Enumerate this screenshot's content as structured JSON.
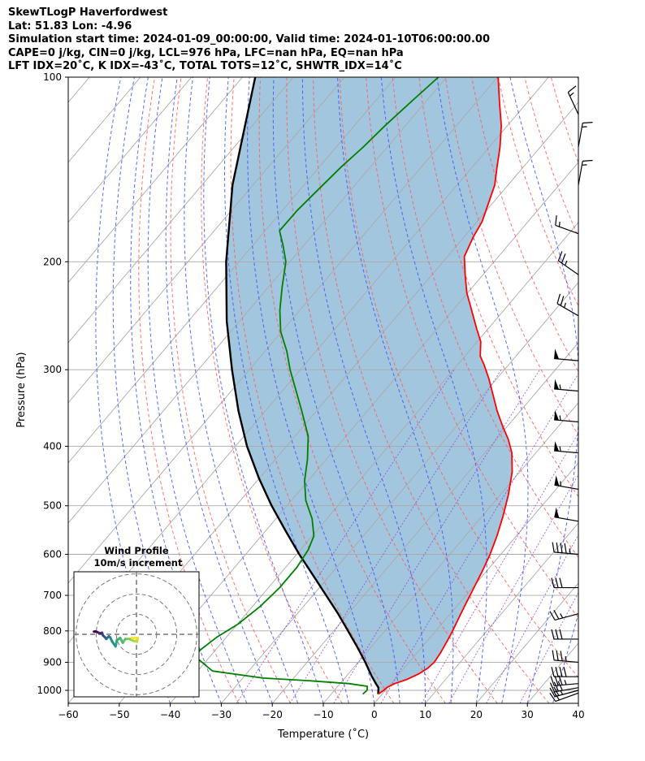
{
  "header": {
    "line1": "SkewTLogP Haverfordwest",
    "line2": "Lat: 51.83   Lon: -4.96",
    "line3": "Simulation start time: 2024-01-09_00:00:00, Valid time: 2024-01-10T06:00:00.00",
    "line4": "CAPE=0 j/kg, CIN=0 j/kg, LCL=976 hPa, LFC=nan hPa, EQ=nan hPa",
    "line5": "LFT IDX=20˚C, K IDX=-43˚C, TOTAL TOTS=12˚C, SHWTR_IDX=14˚C"
  },
  "chart_data": {
    "type": "line",
    "title": "SkewTLogP Haverfordwest",
    "xlabel": "Temperature (˚C)",
    "ylabel": "Pressure (hPa)",
    "xlim": [
      -60,
      40
    ],
    "ylim": [
      1050,
      100
    ],
    "yscale": "log",
    "skew_per_decade_C": 102,
    "x_ticks": [
      -60,
      -50,
      -40,
      -30,
      -20,
      -10,
      0,
      10,
      20,
      30,
      40
    ],
    "y_ticks": [
      100,
      200,
      300,
      400,
      500,
      600,
      700,
      800,
      900,
      1000
    ],
    "grid": true,
    "colors": {
      "temperature": "#ff0000",
      "dewpoint": "#008000",
      "parcel": "#000000",
      "fill": "#a3c6df",
      "dry_adiabat": "#ff5a5a",
      "moist_adiabat": "#3c4fff",
      "mixing_ratio": "#8a3fd6",
      "isotherm": "#a9a9a9"
    },
    "series": [
      {
        "name": "Temperature",
        "points": [
          [
            1014,
            -0.8
          ],
          [
            1000,
            -0.3
          ],
          [
            990,
            -0.2
          ],
          [
            975,
            0.7
          ],
          [
            960,
            2.4
          ],
          [
            940,
            3.8
          ],
          [
            920,
            4.6
          ],
          [
            900,
            4.9
          ],
          [
            870,
            4.6
          ],
          [
            830,
            3.9
          ],
          [
            800,
            3.3
          ],
          [
            760,
            2.3
          ],
          [
            720,
            1.3
          ],
          [
            680,
            0.3
          ],
          [
            640,
            -0.8
          ],
          [
            600,
            -2.1
          ],
          [
            560,
            -3.8
          ],
          [
            520,
            -5.9
          ],
          [
            480,
            -8.4
          ],
          [
            440,
            -11.5
          ],
          [
            410,
            -14.7
          ],
          [
            390,
            -17.6
          ],
          [
            370,
            -21.1
          ],
          [
            350,
            -24.6
          ],
          [
            330,
            -28.0
          ],
          [
            310,
            -31.6
          ],
          [
            295,
            -34.7
          ],
          [
            285,
            -37.0
          ],
          [
            270,
            -39.3
          ],
          [
            257,
            -42.3
          ],
          [
            240,
            -46.3
          ],
          [
            225,
            -50.1
          ],
          [
            210,
            -53.5
          ],
          [
            196,
            -56.7
          ],
          [
            182,
            -58.2
          ],
          [
            172,
            -59.0
          ],
          [
            160,
            -60.9
          ],
          [
            150,
            -62.6
          ],
          [
            140,
            -65.2
          ],
          [
            130,
            -67.9
          ],
          [
            120,
            -71.2
          ],
          [
            110,
            -75.4
          ],
          [
            100,
            -79.9
          ]
        ]
      },
      {
        "name": "Dewpoint",
        "points": [
          [
            1014,
            -3.8
          ],
          [
            1000,
            -3.6
          ],
          [
            985,
            -4.2
          ],
          [
            975,
            -8.3
          ],
          [
            965,
            -16.2
          ],
          [
            955,
            -26.0
          ],
          [
            930,
            -37.1
          ],
          [
            880,
            -43.0
          ],
          [
            860,
            -43.0
          ],
          [
            820,
            -41.9
          ],
          [
            780,
            -39.9
          ],
          [
            730,
            -38.5
          ],
          [
            680,
            -37.8
          ],
          [
            630,
            -37.8
          ],
          [
            590,
            -38.5
          ],
          [
            560,
            -39.7
          ],
          [
            525,
            -42.9
          ],
          [
            490,
            -47.2
          ],
          [
            455,
            -50.7
          ],
          [
            420,
            -53.7
          ],
          [
            385,
            -57.4
          ],
          [
            350,
            -62.9
          ],
          [
            320,
            -68.2
          ],
          [
            300,
            -72.0
          ],
          [
            280,
            -75.7
          ],
          [
            260,
            -80.2
          ],
          [
            240,
            -83.9
          ],
          [
            220,
            -87.3
          ],
          [
            200,
            -90.8
          ],
          [
            188,
            -94.1
          ],
          [
            178,
            -97.2
          ],
          [
            165,
            -97.1
          ],
          [
            155,
            -96.6
          ],
          [
            140,
            -95.7
          ],
          [
            130,
            -94.7
          ],
          [
            120,
            -94.0
          ],
          [
            110,
            -92.9
          ],
          [
            100,
            -91.6
          ]
        ]
      },
      {
        "name": "Parcel",
        "points": [
          [
            1014,
            -0.8
          ],
          [
            990,
            -1.8
          ],
          [
            976,
            -2.9
          ],
          [
            950,
            -4.9
          ],
          [
            900,
            -8.6
          ],
          [
            850,
            -12.7
          ],
          [
            800,
            -17.2
          ],
          [
            750,
            -22.0
          ],
          [
            700,
            -27.4
          ],
          [
            650,
            -33.2
          ],
          [
            600,
            -39.5
          ],
          [
            550,
            -46.0
          ],
          [
            500,
            -53.0
          ],
          [
            450,
            -60.2
          ],
          [
            400,
            -67.7
          ],
          [
            350,
            -75.3
          ],
          [
            300,
            -83.4
          ],
          [
            250,
            -92.5
          ],
          [
            200,
            -102.5
          ],
          [
            150,
            -114.0
          ],
          [
            100,
            -127.5
          ]
        ]
      }
    ],
    "wind_barbs": [
      {
        "p": 1010,
        "dir": 250,
        "spd": 20
      },
      {
        "p": 1000,
        "dir": 255,
        "spd": 25
      },
      {
        "p": 990,
        "dir": 260,
        "spd": 30
      },
      {
        "p": 975,
        "dir": 265,
        "spd": 35
      },
      {
        "p": 950,
        "dir": 270,
        "spd": 40
      },
      {
        "p": 900,
        "dir": 275,
        "spd": 35
      },
      {
        "p": 825,
        "dir": 270,
        "spd": 30
      },
      {
        "p": 750,
        "dir": 255,
        "spd": 25
      },
      {
        "p": 680,
        "dir": 270,
        "spd": 30
      },
      {
        "p": 600,
        "dir": 275,
        "spd": 45
      },
      {
        "p": 530,
        "dir": 280,
        "spd": 50
      },
      {
        "p": 470,
        "dir": 280,
        "spd": 55
      },
      {
        "p": 410,
        "dir": 275,
        "spd": 55
      },
      {
        "p": 365,
        "dir": 275,
        "spd": 55
      },
      {
        "p": 325,
        "dir": 275,
        "spd": 55
      },
      {
        "p": 290,
        "dir": 275,
        "spd": 50
      },
      {
        "p": 245,
        "dir": 300,
        "spd": 25
      },
      {
        "p": 210,
        "dir": 305,
        "spd": 25
      },
      {
        "p": 180,
        "dir": 290,
        "spd": 15
      },
      {
        "p": 150,
        "dir": 10,
        "spd": 15
      },
      {
        "p": 130,
        "dir": 10,
        "spd": 15
      },
      {
        "p": 115,
        "dir": 335,
        "spd": 15
      }
    ],
    "wind_profile": {
      "title": "Wind Profile",
      "subtitle": "10m/s increment",
      "rings_ms": [
        10,
        20,
        30
      ],
      "hodograph_uv": [
        [
          -2.5,
          -1.8
        ],
        [
          0.6,
          -1.9
        ],
        [
          0.3,
          -3.7
        ],
        [
          -1.7,
          -3.2
        ],
        [
          -3.5,
          -2.3
        ],
        [
          -5.5,
          -2.3
        ],
        [
          -6.8,
          -4.2
        ],
        [
          -8.1,
          -1.8
        ],
        [
          -9.7,
          -2.9
        ],
        [
          -10.4,
          -6.0
        ],
        [
          -12.0,
          -3.7
        ],
        [
          -13.1,
          -1.5
        ],
        [
          -13.7,
          -1.0
        ],
        [
          -15.0,
          -2.3
        ],
        [
          -15.7,
          -1.4
        ],
        [
          -16.6,
          -0.6
        ],
        [
          -17.1,
          0.8
        ],
        [
          -18.0,
          0.4
        ],
        [
          -19.7,
          1.2
        ],
        [
          -20.4,
          1.4
        ],
        [
          -21.1,
          1.3
        ]
      ]
    }
  }
}
